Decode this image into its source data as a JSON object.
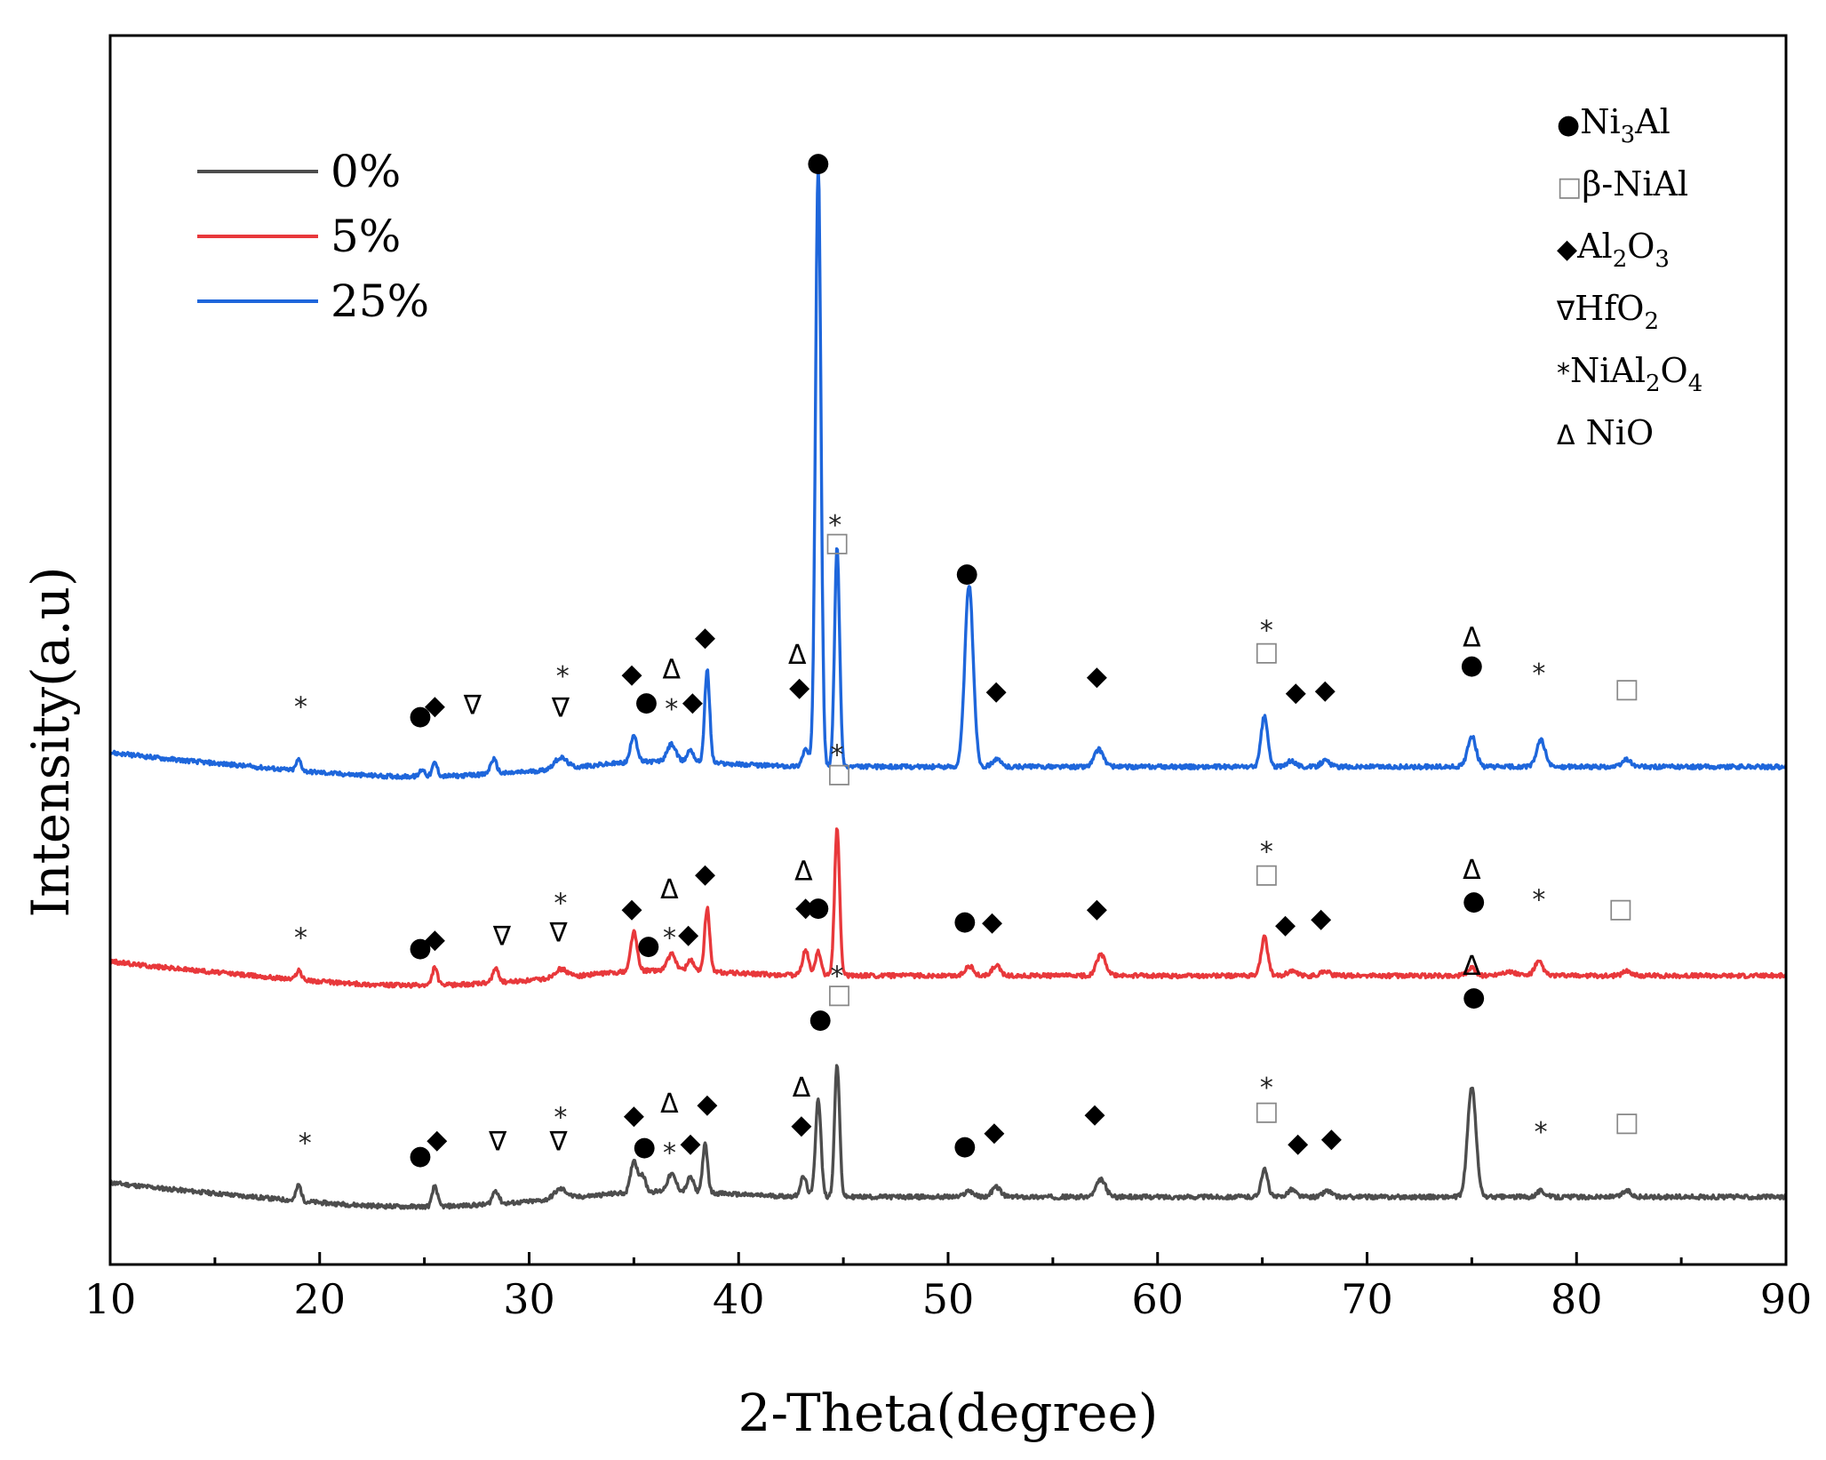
{
  "chart_data": {
    "type": "line",
    "title": "",
    "xlabel": "2-Theta(degree)",
    "ylabel": "Intensity(a.u)",
    "xlim": [
      10,
      90
    ],
    "ylim": [
      0,
      100
    ],
    "xticks": [
      "10",
      "20",
      "30",
      "40",
      "50",
      "60",
      "70",
      "80",
      "90"
    ],
    "legend": {
      "position": "top-left",
      "entries": [
        {
          "label": "0%",
          "color": "#4d4d4d"
        },
        {
          "label": "5%",
          "color": "#e8383b"
        },
        {
          "label": "25%",
          "color": "#1e66db"
        }
      ]
    },
    "phase_legend": [
      {
        "symbol": "●",
        "name": "Ni",
        "sub": "3",
        "name2": "Al",
        "sub2": "",
        "tail": ""
      },
      {
        "symbol": "□",
        "name": "β-NiAl",
        "sub": "",
        "name2": "",
        "sub2": "",
        "tail": ""
      },
      {
        "symbol": "◆",
        "name": "Al",
        "sub": "2",
        "name2": "O",
        "sub2": "3",
        "tail": ""
      },
      {
        "symbol": "∇",
        "name": "HfO",
        "sub": "2",
        "name2": "",
        "sub2": "",
        "tail": ""
      },
      {
        "symbol": "*",
        "name": "NiAl",
        "sub": "2",
        "name2": "O",
        "sub2": "4",
        "tail": ""
      },
      {
        "symbol": "Δ",
        "name": " NiO",
        "sub": "",
        "name2": "",
        "sub2": "",
        "tail": ""
      }
    ],
    "series": [
      {
        "name": "0%",
        "color": "#4d4d4d",
        "baseline": 5.5,
        "peaks": [
          [
            19.0,
            1.3,
            0.12
          ],
          [
            25.5,
            1.7,
            0.12
          ],
          [
            28.4,
            1.1,
            0.15
          ],
          [
            31.5,
            0.8,
            0.3
          ],
          [
            35.0,
            2.6,
            0.15
          ],
          [
            35.4,
            1.4,
            0.15
          ],
          [
            36.8,
            1.4,
            0.2
          ],
          [
            37.7,
            1.2,
            0.15
          ],
          [
            38.4,
            3.9,
            0.12
          ],
          [
            43.1,
            1.6,
            0.15
          ],
          [
            43.8,
            8.0,
            0.13
          ],
          [
            44.7,
            10.8,
            0.12
          ],
          [
            51.0,
            0.5,
            0.2
          ],
          [
            52.3,
            0.8,
            0.2
          ],
          [
            57.3,
            1.4,
            0.22
          ],
          [
            65.1,
            2.2,
            0.16
          ],
          [
            66.4,
            0.6,
            0.2
          ],
          [
            68.1,
            0.5,
            0.2
          ],
          [
            75.0,
            9.0,
            0.2
          ],
          [
            78.3,
            0.5,
            0.2
          ],
          [
            82.4,
            0.5,
            0.2
          ]
        ],
        "annotations": [
          {
            "x": 19.3,
            "y": 10.6,
            "s": "*"
          },
          {
            "x": 24.8,
            "y": 8.9,
            "s": "●"
          },
          {
            "x": 25.6,
            "y": 10.2,
            "s": "◆"
          },
          {
            "x": 28.5,
            "y": 10.0,
            "s": "∇"
          },
          {
            "x": 31.5,
            "y": 12.7,
            "s": "*"
          },
          {
            "x": 31.4,
            "y": 10.0,
            "s": "∇"
          },
          {
            "x": 35.0,
            "y": 12.2,
            "s": "◆"
          },
          {
            "x": 35.5,
            "y": 9.6,
            "s": "●"
          },
          {
            "x": 36.7,
            "y": 9.8,
            "s": "*"
          },
          {
            "x": 37.7,
            "y": 9.9,
            "s": "◆"
          },
          {
            "x": 36.7,
            "y": 13.1,
            "s": "Δ"
          },
          {
            "x": 38.5,
            "y": 13.1,
            "s": "◆"
          },
          {
            "x": 43.0,
            "y": 14.4,
            "s": "Δ"
          },
          {
            "x": 43.0,
            "y": 11.4,
            "s": "◆"
          },
          {
            "x": 43.9,
            "y": 20.0,
            "s": "●"
          },
          {
            "x": 44.7,
            "y": 24.2,
            "s": "*"
          },
          {
            "x": 44.8,
            "y": 22.0,
            "s": "□"
          },
          {
            "x": 50.8,
            "y": 9.7,
            "s": "●"
          },
          {
            "x": 52.2,
            "y": 10.8,
            "s": "◆"
          },
          {
            "x": 57.0,
            "y": 12.3,
            "s": "◆"
          },
          {
            "x": 65.2,
            "y": 15.1,
            "s": "*"
          },
          {
            "x": 65.2,
            "y": 12.5,
            "s": "□"
          },
          {
            "x": 66.7,
            "y": 9.9,
            "s": "◆"
          },
          {
            "x": 68.3,
            "y": 10.3,
            "s": "◆"
          },
          {
            "x": 75.0,
            "y": 24.3,
            "s": "Δ"
          },
          {
            "x": 75.1,
            "y": 21.8,
            "s": "●"
          },
          {
            "x": 78.3,
            "y": 11.5,
            "s": "*"
          },
          {
            "x": 82.4,
            "y": 11.6,
            "s": "□"
          }
        ]
      },
      {
        "name": "5%",
        "color": "#e8383b",
        "baseline": 23.5,
        "peaks": [
          [
            19.0,
            0.8,
            0.12
          ],
          [
            25.5,
            1.5,
            0.12
          ],
          [
            28.4,
            1.1,
            0.15
          ],
          [
            31.5,
            0.7,
            0.3
          ],
          [
            35.0,
            3.2,
            0.15
          ],
          [
            36.8,
            1.3,
            0.2
          ],
          [
            37.7,
            0.9,
            0.15
          ],
          [
            38.5,
            5.2,
            0.12
          ],
          [
            43.2,
            2.0,
            0.15
          ],
          [
            43.8,
            2.0,
            0.13
          ],
          [
            44.7,
            12.0,
            0.12
          ],
          [
            51.0,
            0.8,
            0.2
          ],
          [
            52.3,
            0.8,
            0.2
          ],
          [
            57.3,
            1.7,
            0.22
          ],
          [
            65.1,
            3.1,
            0.16
          ],
          [
            66.4,
            0.4,
            0.2
          ],
          [
            68.0,
            0.4,
            0.2
          ],
          [
            75.0,
            0.6,
            0.2
          ],
          [
            76.7,
            0.3,
            0.4
          ],
          [
            78.2,
            1.1,
            0.2
          ],
          [
            82.4,
            0.4,
            0.2
          ]
        ],
        "annotations": [
          {
            "x": 19.1,
            "y": 27.3,
            "s": "*"
          },
          {
            "x": 24.8,
            "y": 25.8,
            "s": "●"
          },
          {
            "x": 25.5,
            "y": 26.5,
            "s": "◆"
          },
          {
            "x": 28.7,
            "y": 26.7,
            "s": "∇"
          },
          {
            "x": 31.5,
            "y": 30.1,
            "s": "*"
          },
          {
            "x": 31.4,
            "y": 27.0,
            "s": "∇"
          },
          {
            "x": 34.9,
            "y": 29.0,
            "s": "◆"
          },
          {
            "x": 35.7,
            "y": 26.0,
            "s": "●"
          },
          {
            "x": 36.7,
            "y": 27.3,
            "s": "*"
          },
          {
            "x": 37.6,
            "y": 26.9,
            "s": "◆"
          },
          {
            "x": 36.7,
            "y": 30.5,
            "s": "Δ"
          },
          {
            "x": 38.4,
            "y": 31.8,
            "s": "◆"
          },
          {
            "x": 43.1,
            "y": 32.0,
            "s": "Δ"
          },
          {
            "x": 43.2,
            "y": 29.1,
            "s": "◆"
          },
          {
            "x": 43.8,
            "y": 29.1,
            "s": "●"
          },
          {
            "x": 44.7,
            "y": 42.2,
            "s": "*"
          },
          {
            "x": 44.8,
            "y": 40.0,
            "s": "□"
          },
          {
            "x": 50.8,
            "y": 28.0,
            "s": "●"
          },
          {
            "x": 52.1,
            "y": 27.9,
            "s": "◆"
          },
          {
            "x": 57.1,
            "y": 29.0,
            "s": "◆"
          },
          {
            "x": 65.2,
            "y": 34.3,
            "s": "*"
          },
          {
            "x": 65.2,
            "y": 31.8,
            "s": "□"
          },
          {
            "x": 66.1,
            "y": 27.7,
            "s": "◆"
          },
          {
            "x": 67.8,
            "y": 28.2,
            "s": "◆"
          },
          {
            "x": 75.0,
            "y": 32.1,
            "s": "Δ"
          },
          {
            "x": 75.1,
            "y": 29.6,
            "s": "●"
          },
          {
            "x": 78.2,
            "y": 30.4,
            "s": "*"
          },
          {
            "x": 82.1,
            "y": 29.0,
            "s": "□"
          }
        ]
      },
      {
        "name": "25%",
        "color": "#1e66db",
        "baseline": 40.5,
        "peaks": [
          [
            19.0,
            0.9,
            0.12
          ],
          [
            24.9,
            0.6,
            0.12
          ],
          [
            25.5,
            1.1,
            0.12
          ],
          [
            28.3,
            1.2,
            0.15
          ],
          [
            31.5,
            0.9,
            0.3
          ],
          [
            35.0,
            2.3,
            0.15
          ],
          [
            36.8,
            1.4,
            0.2
          ],
          [
            37.7,
            1.0,
            0.15
          ],
          [
            38.5,
            7.5,
            0.12
          ],
          [
            43.2,
            1.4,
            0.15
          ],
          [
            43.8,
            49.0,
            0.13
          ],
          [
            44.7,
            17.8,
            0.12
          ],
          [
            51.0,
            14.8,
            0.2
          ],
          [
            52.3,
            0.6,
            0.2
          ],
          [
            57.2,
            1.4,
            0.22
          ],
          [
            65.1,
            4.1,
            0.16
          ],
          [
            66.4,
            0.5,
            0.2
          ],
          [
            68.0,
            0.5,
            0.2
          ],
          [
            75.0,
            2.5,
            0.2
          ],
          [
            78.3,
            2.2,
            0.2
          ],
          [
            82.4,
            0.6,
            0.2
          ]
        ],
        "annotations": [
          {
            "x": 19.1,
            "y": 46.1,
            "s": "*"
          },
          {
            "x": 24.8,
            "y": 44.7,
            "s": "●"
          },
          {
            "x": 25.5,
            "y": 45.5,
            "s": "◆"
          },
          {
            "x": 27.3,
            "y": 45.5,
            "s": "∇"
          },
          {
            "x": 31.6,
            "y": 48.6,
            "s": "*"
          },
          {
            "x": 31.5,
            "y": 45.3,
            "s": "∇"
          },
          {
            "x": 34.9,
            "y": 48.1,
            "s": "◆"
          },
          {
            "x": 35.6,
            "y": 45.8,
            "s": "●"
          },
          {
            "x": 36.8,
            "y": 45.9,
            "s": "*"
          },
          {
            "x": 37.8,
            "y": 45.8,
            "s": "◆"
          },
          {
            "x": 36.8,
            "y": 48.4,
            "s": "Δ"
          },
          {
            "x": 38.4,
            "y": 51.1,
            "s": "◆"
          },
          {
            "x": 42.8,
            "y": 49.6,
            "s": "Δ"
          },
          {
            "x": 42.9,
            "y": 47.0,
            "s": "◆"
          },
          {
            "x": 43.8,
            "y": 89.7,
            "s": "●"
          },
          {
            "x": 44.6,
            "y": 60.9,
            "s": "*"
          },
          {
            "x": 44.7,
            "y": 58.8,
            "s": "□"
          },
          {
            "x": 50.9,
            "y": 56.3,
            "s": "●"
          },
          {
            "x": 52.3,
            "y": 46.7,
            "s": "◆"
          },
          {
            "x": 57.1,
            "y": 47.9,
            "s": "◆"
          },
          {
            "x": 65.2,
            "y": 52.3,
            "s": "*"
          },
          {
            "x": 65.2,
            "y": 49.9,
            "s": "□"
          },
          {
            "x": 66.6,
            "y": 46.6,
            "s": "◆"
          },
          {
            "x": 68.0,
            "y": 46.8,
            "s": "◆"
          },
          {
            "x": 75.0,
            "y": 51.0,
            "s": "Δ"
          },
          {
            "x": 75.0,
            "y": 48.8,
            "s": "●"
          },
          {
            "x": 78.2,
            "y": 48.8,
            "s": "*"
          },
          {
            "x": 82.4,
            "y": 46.9,
            "s": "□"
          }
        ]
      }
    ]
  }
}
